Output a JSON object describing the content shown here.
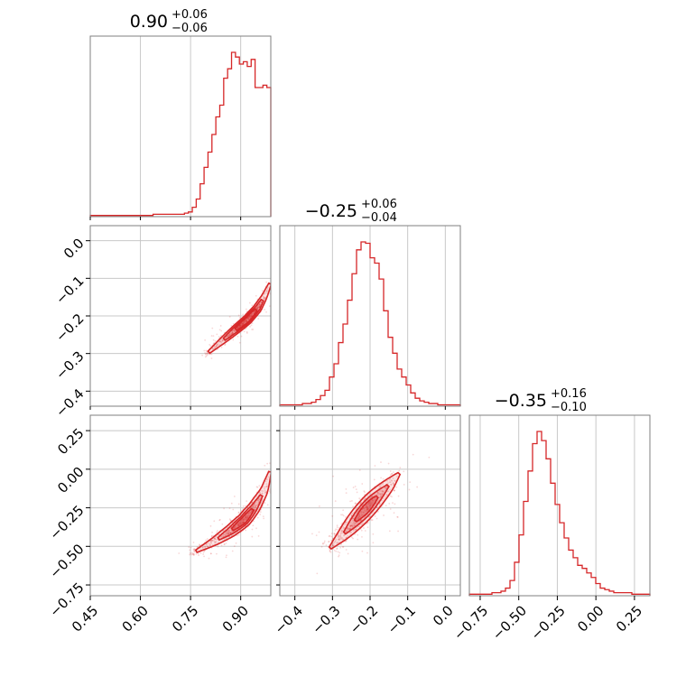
{
  "chart_data": {
    "type": "corner",
    "color": "#d62728",
    "grid": true,
    "titles": [
      {
        "value": "0.90",
        "plus": "+0.06",
        "minus": "−0.06"
      },
      {
        "value": "−0.25",
        "plus": "+0.06",
        "minus": "−0.04"
      },
      {
        "value": "−0.35",
        "plus": "+0.16",
        "minus": "−0.10"
      }
    ],
    "axes": [
      {
        "range": [
          0.45,
          0.99
        ],
        "ticks": [
          0.45,
          0.6,
          0.75,
          0.9
        ],
        "tick_labels": [
          "0.45",
          "0.60",
          "0.75",
          "0.90"
        ]
      },
      {
        "range": [
          -0.44,
          0.04
        ],
        "ticks": [
          -0.4,
          -0.3,
          -0.2,
          -0.1,
          0.0
        ],
        "tick_labels": [
          "−0.4",
          "−0.3",
          "−0.2",
          "−0.1",
          "0.0"
        ]
      },
      {
        "range": [
          -0.82,
          0.35
        ],
        "ticks": [
          -0.75,
          -0.5,
          -0.25,
          0.0,
          0.25
        ],
        "tick_labels": [
          "−0.75",
          "−0.50",
          "−0.25",
          "0.00",
          "0.25"
        ]
      }
    ],
    "histograms": [
      {
        "bins_start": 0.45,
        "bins_end": 0.99,
        "counts": [
          1,
          1,
          1,
          1,
          1,
          1,
          1,
          1,
          1,
          1,
          1,
          1,
          1,
          1,
          1,
          1,
          2,
          2,
          2,
          2,
          2,
          2,
          2,
          2,
          3,
          4,
          8,
          15,
          28,
          42,
          55,
          70,
          85,
          95,
          118,
          126,
          140,
          136,
          130,
          132,
          128,
          134,
          110,
          110,
          112,
          110
        ]
      },
      {
        "bins_start": -0.44,
        "bins_end": 0.04,
        "counts": [
          1,
          1,
          1,
          1,
          1,
          2,
          2,
          3,
          5,
          8,
          12,
          22,
          32,
          48,
          62,
          80,
          100,
          118,
          124,
          123,
          112,
          108,
          96,
          72,
          52,
          40,
          28,
          22,
          16,
          10,
          6,
          4,
          3,
          2,
          2,
          1,
          1,
          1,
          1,
          1
        ]
      },
      {
        "bins_start": -0.82,
        "bins_end": 0.35,
        "counts": [
          1,
          1,
          1,
          1,
          1,
          2,
          2,
          3,
          5,
          10,
          22,
          40,
          62,
          82,
          100,
          108,
          102,
          90,
          74,
          60,
          48,
          38,
          30,
          25,
          20,
          18,
          15,
          12,
          8,
          5,
          4,
          3,
          2,
          2,
          2,
          2,
          1,
          1,
          1,
          1
        ]
      }
    ],
    "pairs": [
      {
        "x_axis": 0,
        "y_axis": 1,
        "center": [
          0.86,
          -0.25
        ],
        "ridge": [
          [
            0.8,
            -0.3
          ],
          [
            0.84,
            -0.27
          ],
          [
            0.88,
            -0.24
          ],
          [
            0.92,
            -0.21
          ],
          [
            0.95,
            -0.18
          ],
          [
            0.97,
            -0.15
          ],
          [
            0.99,
            -0.11
          ]
        ],
        "width": 0.018
      },
      {
        "x_axis": 0,
        "y_axis": 2,
        "center": [
          0.88,
          -0.38
        ],
        "ridge": [
          [
            0.76,
            -0.54
          ],
          [
            0.82,
            -0.47
          ],
          [
            0.87,
            -0.4
          ],
          [
            0.91,
            -0.33
          ],
          [
            0.94,
            -0.25
          ],
          [
            0.97,
            -0.14
          ],
          [
            0.99,
            0.0
          ]
        ],
        "width": 0.03
      },
      {
        "x_axis": 1,
        "y_axis": 2,
        "center": [
          -0.25,
          -0.38
        ],
        "ridge": [
          [
            -0.31,
            -0.52
          ],
          [
            -0.27,
            -0.42
          ],
          [
            -0.23,
            -0.31
          ],
          [
            -0.19,
            -0.2
          ],
          [
            -0.15,
            -0.1
          ],
          [
            -0.12,
            -0.02
          ]
        ],
        "width": 0.045
      }
    ]
  }
}
